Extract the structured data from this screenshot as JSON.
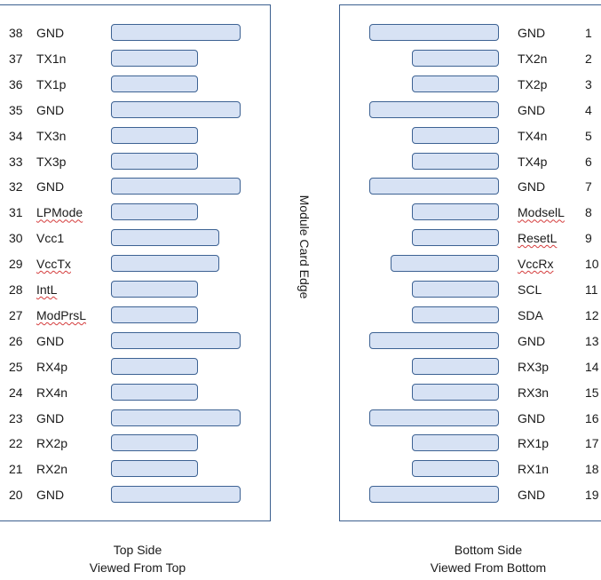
{
  "edge_label": "Module Card Edge",
  "top_side": {
    "caption_line1": "Top Side",
    "caption_line2": "Viewed From Top",
    "pins": [
      {
        "num": "38",
        "name": "GND",
        "pad": "long"
      },
      {
        "num": "37",
        "name": "TX1n",
        "pad": "short"
      },
      {
        "num": "36",
        "name": "TX1p",
        "pad": "short"
      },
      {
        "num": "35",
        "name": "GND",
        "pad": "long"
      },
      {
        "num": "34",
        "name": "TX3n",
        "pad": "short"
      },
      {
        "num": "33",
        "name": "TX3p",
        "pad": "short"
      },
      {
        "num": "32",
        "name": "GND",
        "pad": "long"
      },
      {
        "num": "31",
        "name": "LPMode",
        "pad": "short",
        "spell": true
      },
      {
        "num": "30",
        "name": "Vcc1",
        "pad": "medium"
      },
      {
        "num": "29",
        "name": "VccTx",
        "pad": "medium",
        "spell": true
      },
      {
        "num": "28",
        "name": "IntL",
        "pad": "short",
        "spell": true
      },
      {
        "num": "27",
        "name": "ModPrsL",
        "pad": "short",
        "spell": true
      },
      {
        "num": "26",
        "name": "GND",
        "pad": "long"
      },
      {
        "num": "25",
        "name": "RX4p",
        "pad": "short"
      },
      {
        "num": "24",
        "name": "RX4n",
        "pad": "short"
      },
      {
        "num": "23",
        "name": "GND",
        "pad": "long"
      },
      {
        "num": "22",
        "name": "RX2p",
        "pad": "short"
      },
      {
        "num": "21",
        "name": "RX2n",
        "pad": "short"
      },
      {
        "num": "20",
        "name": "GND",
        "pad": "long"
      }
    ]
  },
  "bottom_side": {
    "caption_line1": "Bottom Side",
    "caption_line2": "Viewed From Bottom",
    "pins": [
      {
        "num": "1",
        "name": "GND",
        "pad": "long"
      },
      {
        "num": "2",
        "name": "TX2n",
        "pad": "short"
      },
      {
        "num": "3",
        "name": "TX2p",
        "pad": "short"
      },
      {
        "num": "4",
        "name": "GND",
        "pad": "long"
      },
      {
        "num": "5",
        "name": "TX4n",
        "pad": "short"
      },
      {
        "num": "6",
        "name": "TX4p",
        "pad": "short"
      },
      {
        "num": "7",
        "name": "GND",
        "pad": "long"
      },
      {
        "num": "8",
        "name": "ModselL",
        "pad": "short",
        "spell": true
      },
      {
        "num": "9",
        "name": "ResetL",
        "pad": "short",
        "spell": true
      },
      {
        "num": "10",
        "name": "VccRx",
        "pad": "medium",
        "spell": true
      },
      {
        "num": "11",
        "name": "SCL",
        "pad": "short"
      },
      {
        "num": "12",
        "name": "SDA",
        "pad": "short"
      },
      {
        "num": "13",
        "name": "GND",
        "pad": "long"
      },
      {
        "num": "14",
        "name": "RX3p",
        "pad": "short"
      },
      {
        "num": "15",
        "name": "RX3n",
        "pad": "short"
      },
      {
        "num": "16",
        "name": "GND",
        "pad": "long"
      },
      {
        "num": "17",
        "name": "RX1p",
        "pad": "short"
      },
      {
        "num": "18",
        "name": "RX1n",
        "pad": "short"
      },
      {
        "num": "19",
        "name": "GND",
        "pad": "long"
      }
    ]
  },
  "colors": {
    "pad_fill": "#d7e2f4",
    "pad_border": "#3d6293",
    "panel_border": "#3c5f8f"
  }
}
